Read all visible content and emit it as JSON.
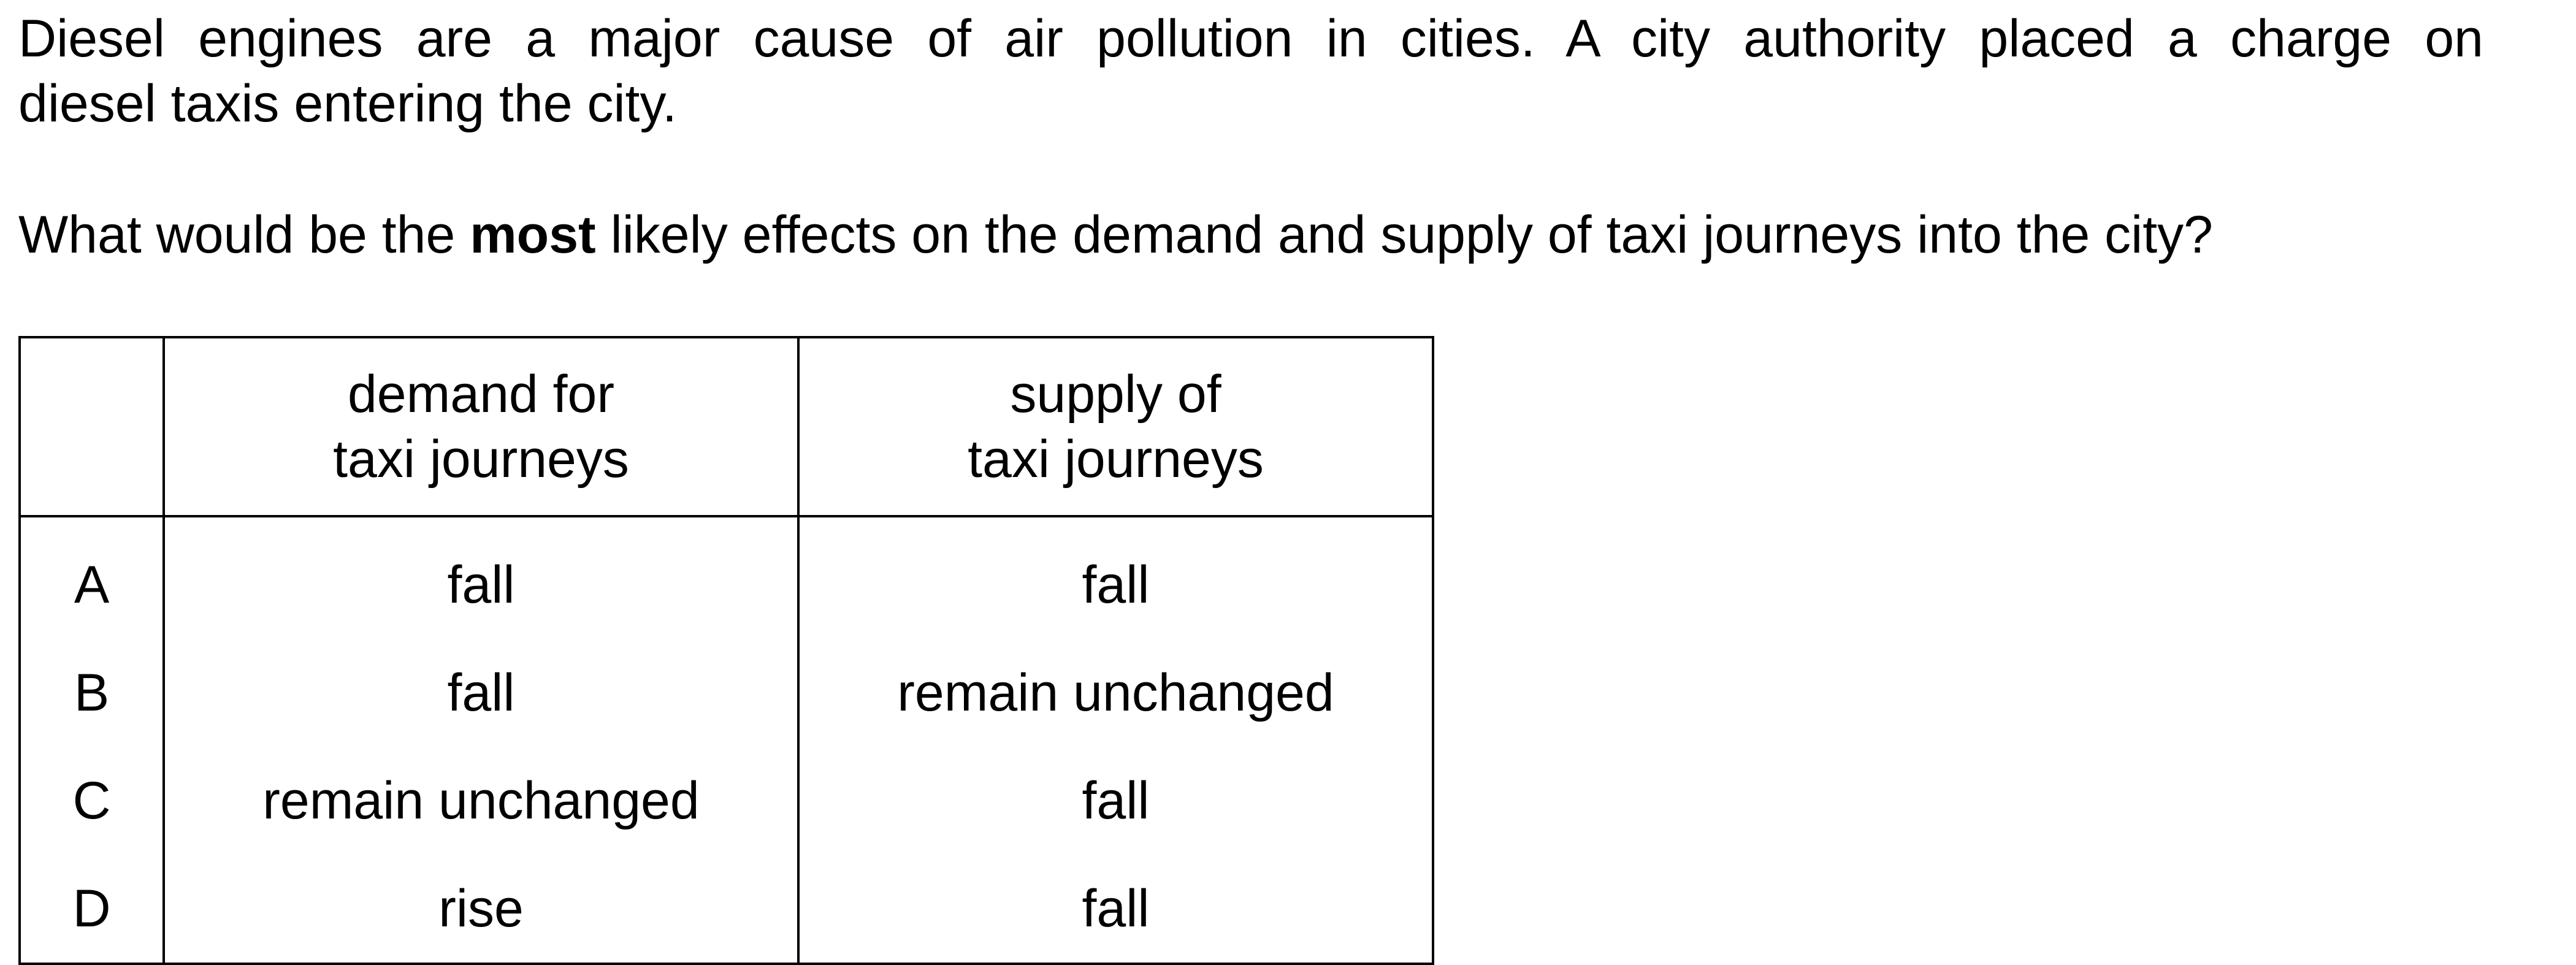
{
  "question": {
    "intro_line1": "Diesel engines are a major cause of air pollution in cities. A city authority placed a charge on",
    "intro_line2": "diesel taxis entering the city.",
    "prompt_before": "What would be the ",
    "prompt_bold": "most",
    "prompt_after": " likely effects on the demand and supply of taxi journeys into the city?"
  },
  "table": {
    "header": {
      "letter": "",
      "demand_line1": "demand for",
      "demand_line2": "taxi journeys",
      "supply_line1": "supply of",
      "supply_line2": "taxi journeys"
    },
    "rows": [
      {
        "letter": "A",
        "demand": "fall",
        "supply": "fall"
      },
      {
        "letter": "B",
        "demand": "fall",
        "supply": "remain unchanged"
      },
      {
        "letter": "C",
        "demand": "remain unchanged",
        "supply": "fall"
      },
      {
        "letter": "D",
        "demand": "rise",
        "supply": "fall"
      }
    ]
  }
}
